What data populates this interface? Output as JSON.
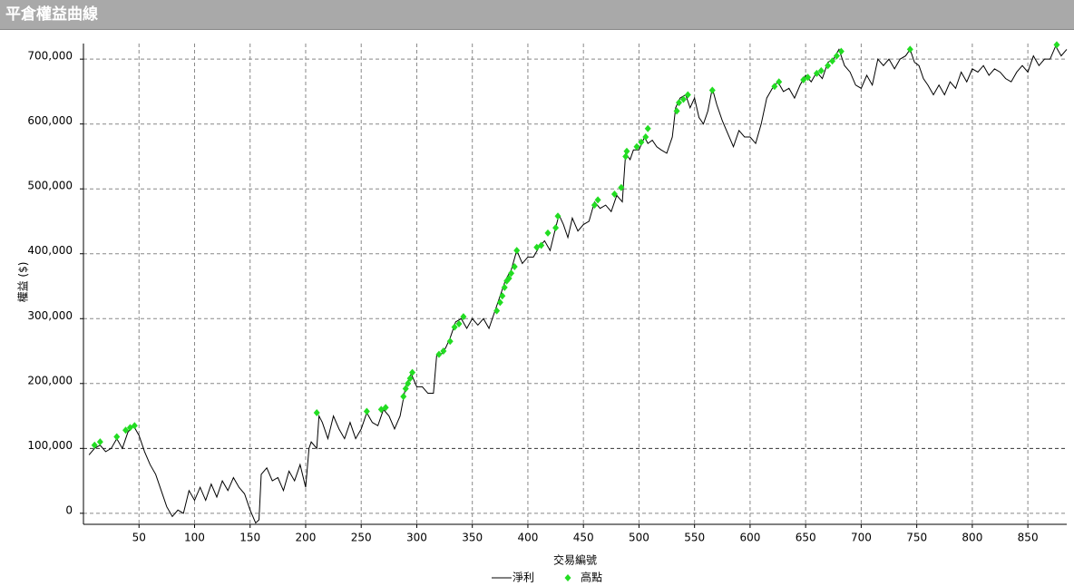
{
  "header": {
    "title": "平倉權益曲線"
  },
  "chart_data": {
    "type": "line",
    "xlabel": "交易編號",
    "ylabel": "權益 ($)",
    "xlim": [
      0,
      885
    ],
    "xticks": [
      50,
      100,
      150,
      200,
      250,
      300,
      350,
      400,
      450,
      500,
      550,
      600,
      650,
      700,
      750,
      800,
      850
    ],
    "ylim": [
      -17000,
      724000
    ],
    "yticks": [
      0,
      {
        "value": 100000,
        "label": "100,000"
      },
      {
        "value": 200000,
        "label": "200,000"
      },
      {
        "value": 300000,
        "label": "300,000"
      },
      {
        "value": 400000,
        "label": "400,000"
      },
      {
        "value": 500000,
        "label": "500,000"
      },
      {
        "value": 600000,
        "label": "600,000"
      },
      {
        "value": 700000,
        "label": "700,000"
      }
    ],
    "grid": true,
    "series": [
      {
        "name": "淨利",
        "color": "#000000",
        "kind": "line",
        "x": [
          5,
          10,
          15,
          20,
          25,
          30,
          35,
          40,
          45,
          50,
          55,
          60,
          65,
          70,
          75,
          80,
          85,
          90,
          95,
          100,
          105,
          110,
          115,
          120,
          125,
          130,
          135,
          140,
          145,
          150,
          155,
          158,
          160,
          165,
          170,
          175,
          180,
          185,
          190,
          195,
          200,
          203,
          205,
          210,
          212,
          215,
          220,
          225,
          230,
          235,
          240,
          245,
          250,
          255,
          260,
          265,
          270,
          275,
          280,
          285,
          290,
          295,
          300,
          305,
          310,
          315,
          318,
          322,
          326,
          330,
          335,
          340,
          345,
          350,
          355,
          360,
          365,
          370,
          375,
          380,
          385,
          390,
          395,
          400,
          405,
          410,
          415,
          420,
          425,
          428,
          432,
          436,
          440,
          445,
          450,
          455,
          460,
          465,
          470,
          475,
          480,
          485,
          488,
          492,
          495,
          500,
          505,
          508,
          512,
          516,
          520,
          525,
          530,
          533,
          537,
          542,
          546,
          550,
          554,
          558,
          562,
          566,
          570,
          575,
          580,
          585,
          590,
          595,
          600,
          605,
          610,
          615,
          620,
          625,
          630,
          635,
          640,
          645,
          650,
          655,
          660,
          665,
          670,
          675,
          680,
          685,
          690,
          695,
          700,
          705,
          710,
          715,
          720,
          725,
          730,
          735,
          740,
          744,
          748,
          752,
          756,
          760,
          765,
          770,
          775,
          780,
          785,
          790,
          795,
          800,
          805,
          810,
          815,
          820,
          825,
          830,
          835,
          840,
          845,
          850,
          855,
          860,
          865,
          870,
          875,
          880,
          885
        ],
        "values": [
          90000,
          100000,
          105000,
          95000,
          100000,
          115000,
          100000,
          125000,
          135000,
          120000,
          95000,
          75000,
          60000,
          35000,
          10000,
          -5000,
          5000,
          0,
          35000,
          20000,
          40000,
          20000,
          45000,
          25000,
          50000,
          35000,
          55000,
          40000,
          30000,
          5000,
          -15000,
          -10000,
          60000,
          70000,
          50000,
          55000,
          35000,
          65000,
          50000,
          75000,
          40000,
          100000,
          110000,
          100000,
          150000,
          140000,
          115000,
          150000,
          130000,
          115000,
          140000,
          115000,
          130000,
          155000,
          140000,
          135000,
          160000,
          150000,
          130000,
          150000,
          195000,
          215000,
          195000,
          195000,
          185000,
          185000,
          245000,
          245000,
          255000,
          270000,
          295000,
          300000,
          285000,
          300000,
          290000,
          300000,
          285000,
          310000,
          335000,
          360000,
          375000,
          405000,
          385000,
          395000,
          395000,
          410000,
          420000,
          405000,
          440000,
          460000,
          445000,
          425000,
          455000,
          435000,
          445000,
          450000,
          480000,
          470000,
          475000,
          465000,
          490000,
          480000,
          555000,
          545000,
          560000,
          560000,
          580000,
          570000,
          575000,
          565000,
          560000,
          555000,
          580000,
          625000,
          640000,
          645000,
          625000,
          640000,
          610000,
          600000,
          620000,
          655000,
          630000,
          605000,
          585000,
          565000,
          590000,
          580000,
          580000,
          570000,
          600000,
          640000,
          655000,
          665000,
          650000,
          655000,
          640000,
          660000,
          675000,
          665000,
          680000,
          670000,
          695000,
          700000,
          715000,
          690000,
          680000,
          660000,
          655000,
          675000,
          660000,
          700000,
          690000,
          700000,
          685000,
          700000,
          705000,
          715000,
          695000,
          690000,
          670000,
          660000,
          645000,
          660000,
          645000,
          665000,
          655000,
          680000,
          665000,
          685000,
          680000,
          690000,
          675000,
          685000,
          680000,
          670000,
          665000,
          680000,
          690000,
          680000,
          705000,
          690000,
          700000,
          700000,
          720000,
          705000,
          715000
        ]
      },
      {
        "name": "高點",
        "color": "#22dd22",
        "kind": "points",
        "x": [
          10,
          15,
          30,
          38,
          42,
          46,
          210,
          255,
          268,
          272,
          288,
          290,
          292,
          294,
          296,
          320,
          324,
          330,
          334,
          338,
          342,
          372,
          375,
          377,
          379,
          381,
          383,
          385,
          388,
          390,
          408,
          412,
          418,
          425,
          427,
          460,
          463,
          478,
          484,
          488,
          489,
          498,
          502,
          506,
          508,
          534,
          536,
          540,
          544,
          566,
          622,
          626,
          648,
          652,
          660,
          664,
          670,
          674,
          678,
          682,
          744,
          876
        ],
        "values": [
          105000,
          110000,
          118000,
          128000,
          132000,
          135000,
          155000,
          157000,
          160000,
          163000,
          180000,
          192000,
          200000,
          208000,
          217000,
          245000,
          250000,
          265000,
          287000,
          292000,
          303000,
          312000,
          325000,
          335000,
          348000,
          358000,
          362000,
          370000,
          380000,
          405000,
          410000,
          413000,
          432000,
          440000,
          458000,
          475000,
          483000,
          492000,
          502000,
          550000,
          558000,
          565000,
          572000,
          580000,
          593000,
          620000,
          633000,
          638000,
          645000,
          652000,
          658000,
          665000,
          668000,
          672000,
          678000,
          682000,
          690000,
          697000,
          705000,
          712000,
          715000,
          722000
        ]
      }
    ]
  }
}
